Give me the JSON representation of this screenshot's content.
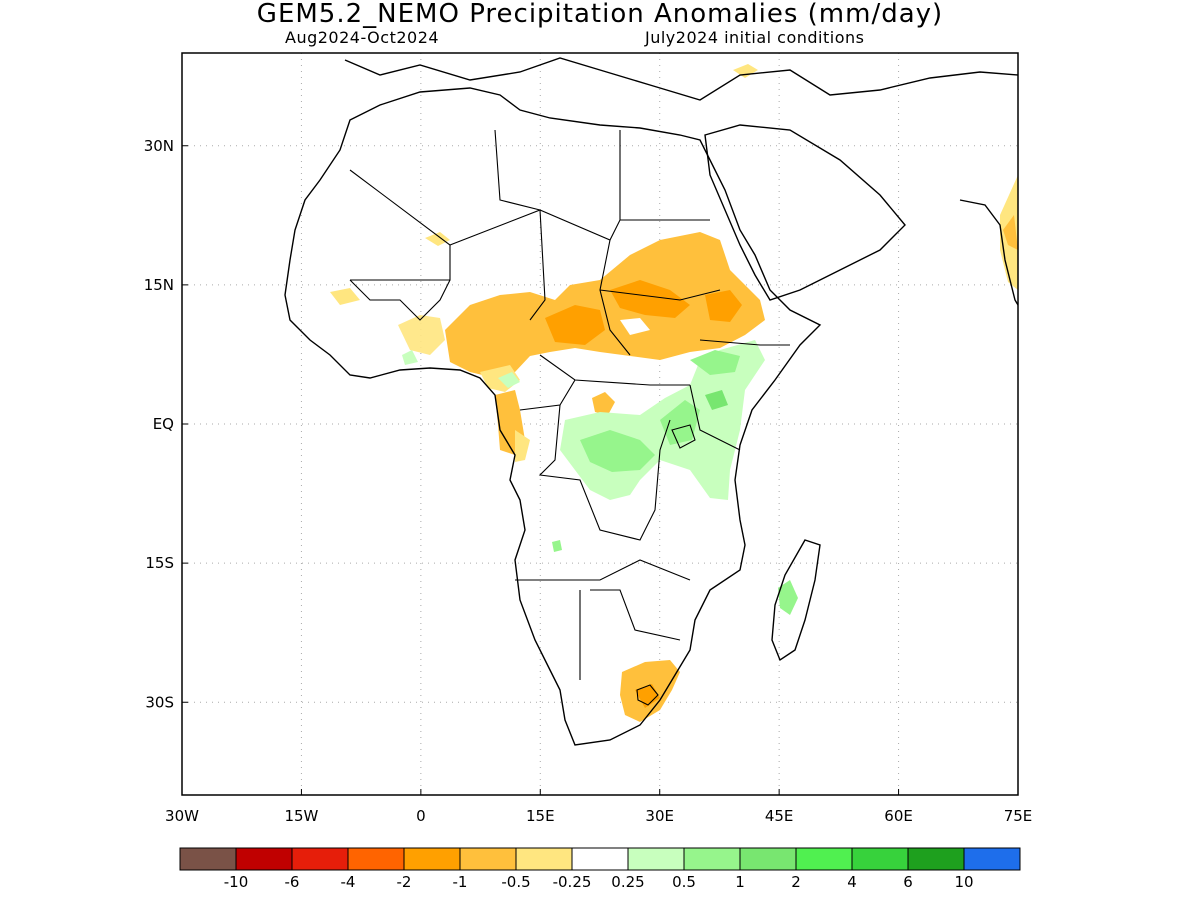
{
  "title": "GEM5.2_NEMO Precipitation Anomalies (mm/day)",
  "subtitle_left": "Aug2024-Oct2024",
  "subtitle_right": "July2024 initial conditions",
  "map": {
    "lon_range": [
      -30,
      75
    ],
    "lat_range": [
      -40,
      40
    ],
    "lon_ticks": [
      {
        "value": -30,
        "label": "30W"
      },
      {
        "value": -15,
        "label": "15W"
      },
      {
        "value": 0,
        "label": "0"
      },
      {
        "value": 15,
        "label": "15E"
      },
      {
        "value": 30,
        "label": "30E"
      },
      {
        "value": 45,
        "label": "45E"
      },
      {
        "value": 60,
        "label": "60E"
      },
      {
        "value": 75,
        "label": "75E"
      }
    ],
    "lat_ticks": [
      {
        "value": 30,
        "label": "30N"
      },
      {
        "value": 15,
        "label": "15N"
      },
      {
        "value": 0,
        "label": "EQ"
      },
      {
        "value": -15,
        "label": "15S"
      },
      {
        "value": -30,
        "label": "30S"
      }
    ],
    "grid": true,
    "colors": {
      "dry_weak": "#ffe680",
      "dry_moderate": "#ffc03c",
      "dry_strong": "#ffa000",
      "wet_weak": "#c8ffbe",
      "wet_moderate": "#96f58c",
      "wet_strong": "#78e670",
      "land_outline": "#000000"
    }
  },
  "colorbar": {
    "colors": [
      "#7a5247",
      "#c00000",
      "#e61e0a",
      "#ff6400",
      "#ffa000",
      "#ffc03c",
      "#ffe680",
      "#ffffff",
      "#c8ffbe",
      "#96f58c",
      "#78e670",
      "#50f050",
      "#37d23c",
      "#1ea01e",
      "#1e6eeb"
    ],
    "labels": [
      "-10",
      "-6",
      "-4",
      "-2",
      "-1",
      "-0.5",
      "-0.25",
      "0.25",
      "0.5",
      "1",
      "2",
      "4",
      "6",
      "10"
    ]
  }
}
